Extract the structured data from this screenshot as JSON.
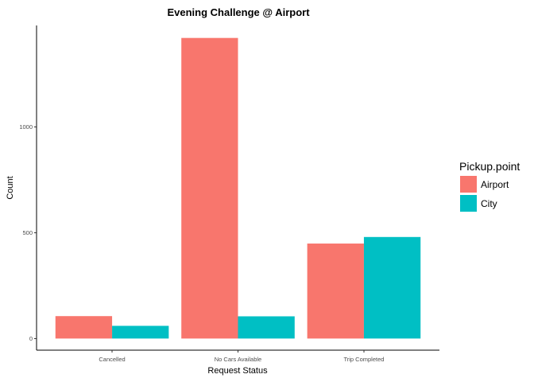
{
  "chart_data": {
    "type": "bar",
    "title": "Evening Challenge @ Airport",
    "xlabel": "Request Status",
    "ylabel": "Count",
    "categories": [
      "Cancelled",
      "No Cars Available",
      "Trip Completed"
    ],
    "series": [
      {
        "name": "Airport",
        "color": "#F8766D",
        "values": [
          106,
          1421,
          449
        ]
      },
      {
        "name": "City",
        "color": "#00BFC4",
        "values": [
          60,
          105,
          480
        ]
      }
    ],
    "yticks": [
      0,
      500,
      1000
    ],
    "ylim": [
      -55,
      1480
    ],
    "grid": false,
    "legend": {
      "title": "Pickup.point",
      "position": "right"
    }
  }
}
